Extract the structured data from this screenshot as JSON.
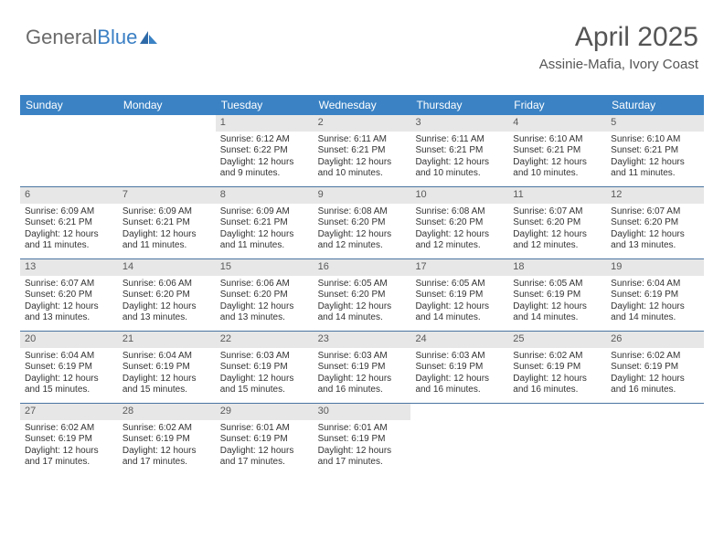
{
  "logo": {
    "part1": "General",
    "part2": "Blue"
  },
  "header": {
    "month": "April 2025",
    "location": "Assinie-Mafia, Ivory Coast"
  },
  "colors": {
    "header_bg": "#3a82c4",
    "header_text": "#ffffff",
    "row_border": "#4a74a0",
    "daynum_bg": "#e7e7e7",
    "daynum_text": "#5a5a5a",
    "body_text": "#333333",
    "logo_gray": "#6a6a6a",
    "logo_blue": "#3a7fc4",
    "title_text": "#555555"
  },
  "weekdays": [
    "Sunday",
    "Monday",
    "Tuesday",
    "Wednesday",
    "Thursday",
    "Friday",
    "Saturday"
  ],
  "layout": {
    "columns": 7,
    "first_weekday_index": 2,
    "days_in_month": 30
  },
  "days": {
    "1": {
      "sunrise": "Sunrise: 6:12 AM",
      "sunset": "Sunset: 6:22 PM",
      "day1": "Daylight: 12 hours",
      "day2": "and 9 minutes."
    },
    "2": {
      "sunrise": "Sunrise: 6:11 AM",
      "sunset": "Sunset: 6:21 PM",
      "day1": "Daylight: 12 hours",
      "day2": "and 10 minutes."
    },
    "3": {
      "sunrise": "Sunrise: 6:11 AM",
      "sunset": "Sunset: 6:21 PM",
      "day1": "Daylight: 12 hours",
      "day2": "and 10 minutes."
    },
    "4": {
      "sunrise": "Sunrise: 6:10 AM",
      "sunset": "Sunset: 6:21 PM",
      "day1": "Daylight: 12 hours",
      "day2": "and 10 minutes."
    },
    "5": {
      "sunrise": "Sunrise: 6:10 AM",
      "sunset": "Sunset: 6:21 PM",
      "day1": "Daylight: 12 hours",
      "day2": "and 11 minutes."
    },
    "6": {
      "sunrise": "Sunrise: 6:09 AM",
      "sunset": "Sunset: 6:21 PM",
      "day1": "Daylight: 12 hours",
      "day2": "and 11 minutes."
    },
    "7": {
      "sunrise": "Sunrise: 6:09 AM",
      "sunset": "Sunset: 6:21 PM",
      "day1": "Daylight: 12 hours",
      "day2": "and 11 minutes."
    },
    "8": {
      "sunrise": "Sunrise: 6:09 AM",
      "sunset": "Sunset: 6:21 PM",
      "day1": "Daylight: 12 hours",
      "day2": "and 11 minutes."
    },
    "9": {
      "sunrise": "Sunrise: 6:08 AM",
      "sunset": "Sunset: 6:20 PM",
      "day1": "Daylight: 12 hours",
      "day2": "and 12 minutes."
    },
    "10": {
      "sunrise": "Sunrise: 6:08 AM",
      "sunset": "Sunset: 6:20 PM",
      "day1": "Daylight: 12 hours",
      "day2": "and 12 minutes."
    },
    "11": {
      "sunrise": "Sunrise: 6:07 AM",
      "sunset": "Sunset: 6:20 PM",
      "day1": "Daylight: 12 hours",
      "day2": "and 12 minutes."
    },
    "12": {
      "sunrise": "Sunrise: 6:07 AM",
      "sunset": "Sunset: 6:20 PM",
      "day1": "Daylight: 12 hours",
      "day2": "and 13 minutes."
    },
    "13": {
      "sunrise": "Sunrise: 6:07 AM",
      "sunset": "Sunset: 6:20 PM",
      "day1": "Daylight: 12 hours",
      "day2": "and 13 minutes."
    },
    "14": {
      "sunrise": "Sunrise: 6:06 AM",
      "sunset": "Sunset: 6:20 PM",
      "day1": "Daylight: 12 hours",
      "day2": "and 13 minutes."
    },
    "15": {
      "sunrise": "Sunrise: 6:06 AM",
      "sunset": "Sunset: 6:20 PM",
      "day1": "Daylight: 12 hours",
      "day2": "and 13 minutes."
    },
    "16": {
      "sunrise": "Sunrise: 6:05 AM",
      "sunset": "Sunset: 6:20 PM",
      "day1": "Daylight: 12 hours",
      "day2": "and 14 minutes."
    },
    "17": {
      "sunrise": "Sunrise: 6:05 AM",
      "sunset": "Sunset: 6:19 PM",
      "day1": "Daylight: 12 hours",
      "day2": "and 14 minutes."
    },
    "18": {
      "sunrise": "Sunrise: 6:05 AM",
      "sunset": "Sunset: 6:19 PM",
      "day1": "Daylight: 12 hours",
      "day2": "and 14 minutes."
    },
    "19": {
      "sunrise": "Sunrise: 6:04 AM",
      "sunset": "Sunset: 6:19 PM",
      "day1": "Daylight: 12 hours",
      "day2": "and 14 minutes."
    },
    "20": {
      "sunrise": "Sunrise: 6:04 AM",
      "sunset": "Sunset: 6:19 PM",
      "day1": "Daylight: 12 hours",
      "day2": "and 15 minutes."
    },
    "21": {
      "sunrise": "Sunrise: 6:04 AM",
      "sunset": "Sunset: 6:19 PM",
      "day1": "Daylight: 12 hours",
      "day2": "and 15 minutes."
    },
    "22": {
      "sunrise": "Sunrise: 6:03 AM",
      "sunset": "Sunset: 6:19 PM",
      "day1": "Daylight: 12 hours",
      "day2": "and 15 minutes."
    },
    "23": {
      "sunrise": "Sunrise: 6:03 AM",
      "sunset": "Sunset: 6:19 PM",
      "day1": "Daylight: 12 hours",
      "day2": "and 16 minutes."
    },
    "24": {
      "sunrise": "Sunrise: 6:03 AM",
      "sunset": "Sunset: 6:19 PM",
      "day1": "Daylight: 12 hours",
      "day2": "and 16 minutes."
    },
    "25": {
      "sunrise": "Sunrise: 6:02 AM",
      "sunset": "Sunset: 6:19 PM",
      "day1": "Daylight: 12 hours",
      "day2": "and 16 minutes."
    },
    "26": {
      "sunrise": "Sunrise: 6:02 AM",
      "sunset": "Sunset: 6:19 PM",
      "day1": "Daylight: 12 hours",
      "day2": "and 16 minutes."
    },
    "27": {
      "sunrise": "Sunrise: 6:02 AM",
      "sunset": "Sunset: 6:19 PM",
      "day1": "Daylight: 12 hours",
      "day2": "and 17 minutes."
    },
    "28": {
      "sunrise": "Sunrise: 6:02 AM",
      "sunset": "Sunset: 6:19 PM",
      "day1": "Daylight: 12 hours",
      "day2": "and 17 minutes."
    },
    "29": {
      "sunrise": "Sunrise: 6:01 AM",
      "sunset": "Sunset: 6:19 PM",
      "day1": "Daylight: 12 hours",
      "day2": "and 17 minutes."
    },
    "30": {
      "sunrise": "Sunrise: 6:01 AM",
      "sunset": "Sunset: 6:19 PM",
      "day1": "Daylight: 12 hours",
      "day2": "and 17 minutes."
    }
  }
}
